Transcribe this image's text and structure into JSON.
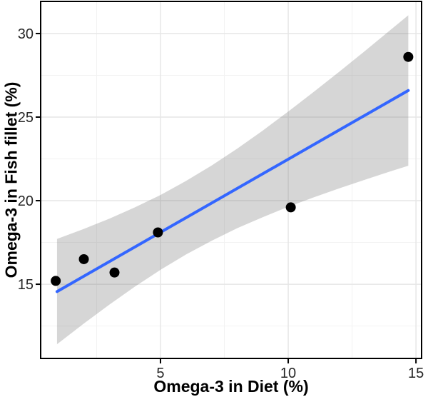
{
  "chart_data": {
    "type": "scatter",
    "subtype": "scatter with linear regression line and 95% confidence band",
    "title": "",
    "xlabel": "Omega-3 in Diet (%)",
    "ylabel": "Omega-3 in Fish fillet (%)",
    "xlim": [
      0.31,
      15.22
    ],
    "ylim": [
      10.56,
      31.92
    ],
    "grid": "major and minor gridlines, light gray on white panel",
    "legend": "none",
    "x_ticks": {
      "values": [
        5,
        10,
        15
      ],
      "labels": [
        "5",
        "10",
        "15"
      ]
    },
    "x_minor_ticks": [
      2.5,
      7.5,
      12.5
    ],
    "y_ticks": {
      "values": [
        15,
        20,
        25,
        30
      ],
      "labels": [
        "15",
        "20",
        "25",
        "30"
      ]
    },
    "y_minor_ticks": [
      12.5,
      17.5,
      22.5,
      27.5
    ],
    "points": [
      {
        "x": 0.9,
        "y": 15.2
      },
      {
        "x": 2.0,
        "y": 16.5
      },
      {
        "x": 3.2,
        "y": 15.7
      },
      {
        "x": 4.9,
        "y": 18.1
      },
      {
        "x": 10.1,
        "y": 19.6
      },
      {
        "x": 14.7,
        "y": 28.6
      }
    ],
    "regression_line": {
      "slope": 0.875,
      "intercept": 13.73,
      "x_start": 0.95,
      "x_end": 14.7
    },
    "confidence_band": {
      "level": "95%",
      "x": [
        0.95,
        2,
        3,
        4,
        5,
        6,
        7,
        8,
        9,
        10,
        11,
        12,
        13,
        14,
        14.7
      ],
      "upper": [
        17.71,
        18.31,
        18.92,
        19.6,
        20.34,
        21.18,
        22.1,
        23.11,
        24.19,
        25.33,
        26.51,
        27.72,
        28.95,
        30.21,
        31.09
      ],
      "lower": [
        11.41,
        12.65,
        13.78,
        14.86,
        15.86,
        16.78,
        17.6,
        18.35,
        19.01,
        19.63,
        20.2,
        20.74,
        21.25,
        21.75,
        22.09
      ]
    },
    "style": {
      "point_color": "#000000",
      "point_radius": 7,
      "line_color": "#3366FF",
      "line_width": 4,
      "band_fill": "rgba(120,120,120,0.30)",
      "panel_border_color": "#000000",
      "panel_border_width": 2,
      "grid_major_color": "#e6e6e6",
      "grid_minor_color": "#f2f2f2",
      "tick_mark_color": "#000000",
      "tick_label_color": "#262626",
      "axis_title_color": "#000000",
      "panel_background": "#ffffff"
    }
  }
}
